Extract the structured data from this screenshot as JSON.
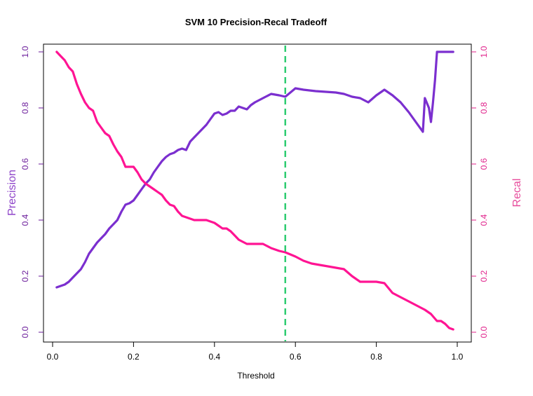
{
  "chart_data": {
    "type": "line",
    "title": "SVM 10 Precision-Recal Tradeoff",
    "xlabel": "Threshold",
    "ylabel": "Precision",
    "ylabel_right": "Recal",
    "xlim": [
      0,
      1
    ],
    "ylim": [
      0,
      1
    ],
    "x_ticks": [
      "0.0",
      "0.2",
      "0.4",
      "0.6",
      "0.8",
      "1.0"
    ],
    "y_ticks": [
      "0.0",
      "0.2",
      "0.4",
      "0.6",
      "0.8",
      "1.0"
    ],
    "y_ticks_right": [
      "0.0",
      "0.2",
      "0.4",
      "0.6",
      "0.8",
      "1.0"
    ],
    "grid": false,
    "threshold_line": {
      "x": 0.575,
      "color": "#2ecc71",
      "style": "dashed"
    },
    "colors": {
      "precision": "#7b2fcf",
      "recall": "#ff1493",
      "left_axis": "#6a1b9a",
      "right_axis": "#e0208a"
    },
    "series": [
      {
        "key": "precision",
        "color": "#7b2fcf",
        "x": [
          0.01,
          0.02,
          0.03,
          0.04,
          0.05,
          0.06,
          0.07,
          0.08,
          0.09,
          0.1,
          0.11,
          0.12,
          0.13,
          0.14,
          0.15,
          0.16,
          0.17,
          0.18,
          0.19,
          0.2,
          0.21,
          0.22,
          0.23,
          0.24,
          0.25,
          0.26,
          0.27,
          0.28,
          0.29,
          0.3,
          0.31,
          0.32,
          0.33,
          0.34,
          0.35,
          0.36,
          0.37,
          0.38,
          0.39,
          0.4,
          0.41,
          0.42,
          0.43,
          0.44,
          0.45,
          0.46,
          0.47,
          0.48,
          0.49,
          0.5,
          0.52,
          0.54,
          0.56,
          0.575,
          0.6,
          0.62,
          0.65,
          0.7,
          0.72,
          0.74,
          0.76,
          0.78,
          0.8,
          0.82,
          0.84,
          0.86,
          0.88,
          0.9,
          0.915,
          0.92,
          0.93,
          0.935,
          0.94,
          0.945,
          0.95,
          0.96,
          0.97,
          0.98,
          0.99
        ],
        "values": [
          0.16,
          0.165,
          0.17,
          0.18,
          0.195,
          0.21,
          0.225,
          0.25,
          0.28,
          0.3,
          0.32,
          0.335,
          0.35,
          0.37,
          0.385,
          0.4,
          0.43,
          0.455,
          0.46,
          0.47,
          0.49,
          0.51,
          0.53,
          0.545,
          0.57,
          0.59,
          0.61,
          0.625,
          0.635,
          0.64,
          0.65,
          0.655,
          0.65,
          0.68,
          0.695,
          0.71,
          0.725,
          0.74,
          0.76,
          0.78,
          0.785,
          0.775,
          0.78,
          0.79,
          0.79,
          0.805,
          0.8,
          0.795,
          0.81,
          0.82,
          0.835,
          0.85,
          0.845,
          0.84,
          0.87,
          0.865,
          0.86,
          0.855,
          0.85,
          0.84,
          0.835,
          0.82,
          0.845,
          0.865,
          0.845,
          0.82,
          0.785,
          0.745,
          0.715,
          0.835,
          0.8,
          0.75,
          0.82,
          0.9,
          1.0,
          1.0,
          1.0,
          1.0,
          1.0
        ]
      },
      {
        "key": "recall",
        "color": "#ff1493",
        "x": [
          0.01,
          0.02,
          0.03,
          0.04,
          0.05,
          0.06,
          0.07,
          0.08,
          0.09,
          0.1,
          0.11,
          0.12,
          0.13,
          0.14,
          0.15,
          0.16,
          0.17,
          0.18,
          0.19,
          0.2,
          0.21,
          0.22,
          0.23,
          0.24,
          0.25,
          0.26,
          0.27,
          0.28,
          0.29,
          0.3,
          0.31,
          0.32,
          0.33,
          0.34,
          0.35,
          0.36,
          0.37,
          0.38,
          0.39,
          0.4,
          0.41,
          0.42,
          0.43,
          0.44,
          0.45,
          0.46,
          0.48,
          0.5,
          0.52,
          0.54,
          0.56,
          0.575,
          0.6,
          0.62,
          0.64,
          0.66,
          0.7,
          0.72,
          0.74,
          0.76,
          0.78,
          0.8,
          0.82,
          0.84,
          0.86,
          0.88,
          0.9,
          0.92,
          0.935,
          0.95,
          0.96,
          0.97,
          0.98,
          0.99
        ],
        "values": [
          1.0,
          0.985,
          0.97,
          0.945,
          0.93,
          0.885,
          0.85,
          0.82,
          0.8,
          0.79,
          0.75,
          0.73,
          0.71,
          0.7,
          0.67,
          0.645,
          0.625,
          0.59,
          0.59,
          0.59,
          0.57,
          0.545,
          0.53,
          0.52,
          0.51,
          0.5,
          0.49,
          0.47,
          0.455,
          0.45,
          0.43,
          0.415,
          0.41,
          0.405,
          0.4,
          0.4,
          0.4,
          0.4,
          0.395,
          0.39,
          0.38,
          0.37,
          0.37,
          0.36,
          0.345,
          0.33,
          0.315,
          0.315,
          0.315,
          0.3,
          0.29,
          0.285,
          0.27,
          0.255,
          0.245,
          0.24,
          0.23,
          0.225,
          0.2,
          0.18,
          0.18,
          0.18,
          0.175,
          0.14,
          0.125,
          0.11,
          0.095,
          0.08,
          0.065,
          0.04,
          0.04,
          0.03,
          0.015,
          0.01
        ]
      }
    ]
  }
}
